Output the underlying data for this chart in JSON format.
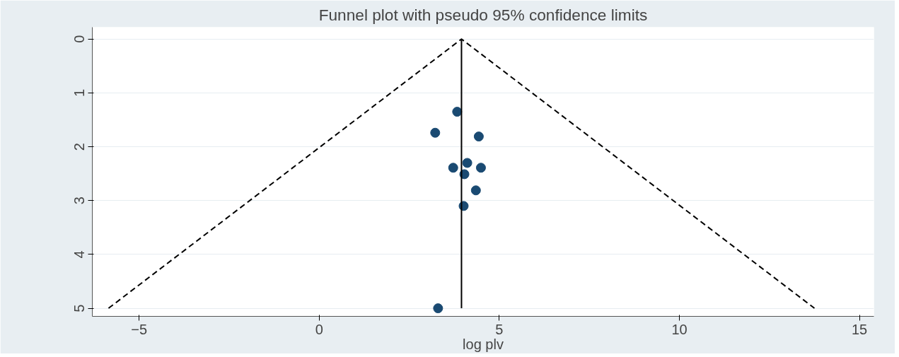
{
  "chart_data": {
    "type": "scatter",
    "title": "Funnel plot with pseudo 95% confidence limits",
    "xlabel": "log plv",
    "xlim": [
      -6.3,
      15.4
    ],
    "xticks": [
      -5,
      0,
      5,
      10,
      15
    ],
    "ylim": [
      5.15,
      -0.22
    ],
    "yticks": [
      0,
      1,
      2,
      3,
      4,
      5
    ],
    "grid": "y",
    "series": [
      {
        "color": "#1a4a72",
        "marker": "circle",
        "x": [
          3.83,
          3.22,
          4.43,
          4.11,
          3.72,
          4.49,
          4.03,
          4.35,
          4.01,
          3.3
        ],
        "values": [
          1.35,
          1.74,
          1.81,
          2.3,
          2.39,
          2.39,
          2.51,
          2.81,
          3.1,
          5.0
        ]
      },
      {
        "type": "line",
        "color": "#000000",
        "line_style": "dashed",
        "x": [
          -5.85,
          3.95,
          13.75
        ],
        "values": [
          5,
          0,
          5
        ]
      },
      {
        "type": "line",
        "color": "#000000",
        "line_style": "solid",
        "x": [
          3.95,
          3.95
        ],
        "values": [
          0,
          5
        ]
      }
    ]
  }
}
